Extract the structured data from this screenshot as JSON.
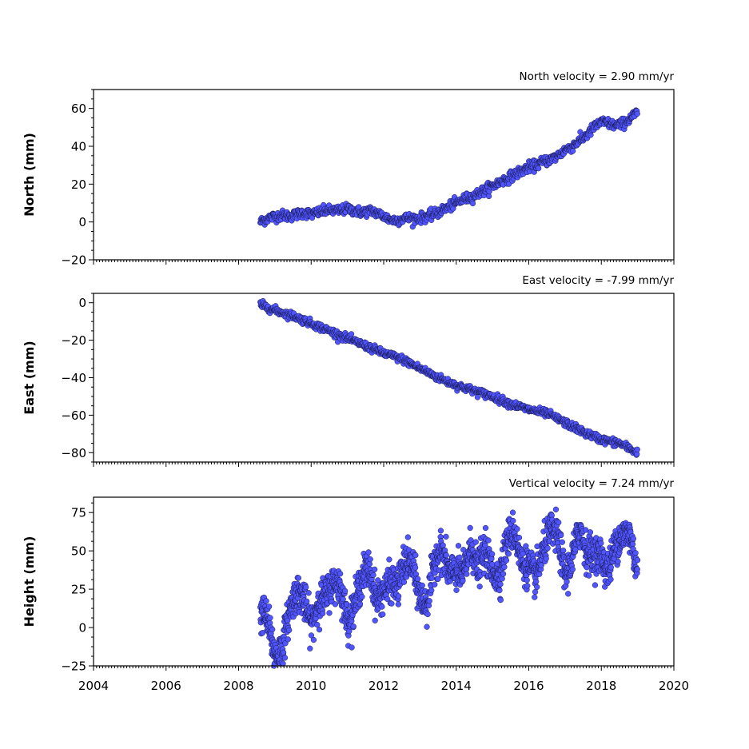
{
  "chart_data": [
    {
      "type": "scatter",
      "title": "North velocity = 2.90 mm/yr",
      "ylabel": "North (mm)",
      "xlim": [
        2004,
        2020
      ],
      "ylim": [
        -20,
        70
      ],
      "yticks": [
        -20,
        0,
        20,
        40,
        60
      ],
      "x_tick_labels_shown": false,
      "marker_color": "#5055ff",
      "series": [
        {
          "x": [
            2008.6,
            2008.8,
            2009.0,
            2009.2,
            2009.4,
            2009.6,
            2009.8,
            2010.0,
            2010.2,
            2010.4,
            2010.6,
            2010.8,
            2011.0,
            2011.2,
            2011.4,
            2011.6,
            2011.8,
            2012.0,
            2012.2,
            2012.4,
            2012.6,
            2012.8,
            2013.0,
            2013.2,
            2013.4,
            2013.6,
            2013.8,
            2014.0,
            2014.2,
            2014.4,
            2014.6,
            2014.8,
            2015.0,
            2015.2,
            2015.4,
            2015.6,
            2015.8,
            2016.0,
            2016.2,
            2016.4,
            2016.6,
            2016.8,
            2017.0,
            2017.2,
            2017.4,
            2017.6,
            2017.8,
            2018.0,
            2018.2,
            2018.4,
            2018.6,
            2018.8,
            2019.0
          ],
          "y": [
            0,
            2,
            3,
            3.5,
            3,
            4,
            5,
            4,
            5,
            6,
            6,
            6,
            7,
            6,
            5,
            6,
            5,
            3,
            1,
            1,
            2,
            2,
            2,
            3,
            4,
            6,
            8,
            10,
            12,
            13,
            15,
            17,
            19,
            21,
            23,
            25,
            27,
            29,
            30,
            32,
            33,
            35,
            38,
            40,
            43,
            46,
            50,
            53,
            52,
            51,
            52,
            55,
            58
          ]
        }
      ]
    },
    {
      "type": "scatter",
      "title": "East velocity = -7.99 mm/yr",
      "ylabel": "East (mm)",
      "xlim": [
        2004,
        2020
      ],
      "ylim": [
        -85,
        5
      ],
      "yticks": [
        -80,
        -60,
        -40,
        -20,
        0
      ],
      "x_tick_labels_shown": false,
      "marker_color": "#5055ff",
      "series": [
        {
          "x": [
            2008.6,
            2009.0,
            2009.5,
            2010.0,
            2010.5,
            2011.0,
            2011.5,
            2012.0,
            2012.5,
            2013.0,
            2013.5,
            2014.0,
            2014.5,
            2015.0,
            2015.5,
            2016.0,
            2016.5,
            2017.0,
            2017.5,
            2018.0,
            2018.5,
            2019.0
          ],
          "y": [
            -1,
            -4,
            -7,
            -11,
            -15,
            -19,
            -23,
            -27,
            -30,
            -35,
            -40,
            -44,
            -47,
            -50,
            -54,
            -57,
            -59,
            -64,
            -69,
            -73,
            -75,
            -80
          ]
        }
      ]
    },
    {
      "type": "scatter",
      "title": "Vertical velocity = 7.24 mm/yr",
      "ylabel": "Height (mm)",
      "xlim": [
        2004,
        2020
      ],
      "ylim": [
        -25,
        85
      ],
      "yticks": [
        -25,
        0,
        25,
        50,
        75
      ],
      "xticks": [
        2004,
        2006,
        2008,
        2010,
        2012,
        2014,
        2016,
        2018,
        2020
      ],
      "marker_color": "#5055ff",
      "series": [
        {
          "x": [
            2008.6,
            2008.8,
            2009.0,
            2009.2,
            2009.4,
            2009.6,
            2009.8,
            2010.0,
            2010.2,
            2010.4,
            2010.6,
            2010.8,
            2011.0,
            2011.2,
            2011.4,
            2011.6,
            2011.8,
            2012.0,
            2012.2,
            2012.4,
            2012.6,
            2012.8,
            2013.0,
            2013.2,
            2013.4,
            2013.6,
            2013.8,
            2014.0,
            2014.2,
            2014.4,
            2014.6,
            2014.8,
            2015.0,
            2015.2,
            2015.4,
            2015.6,
            2015.8,
            2016.0,
            2016.2,
            2016.4,
            2016.6,
            2016.8,
            2017.0,
            2017.2,
            2017.4,
            2017.6,
            2017.8,
            2018.0,
            2018.2,
            2018.4,
            2018.6,
            2018.8,
            2019.0
          ],
          "y": [
            2,
            5,
            -10,
            -8,
            5,
            15,
            18,
            10,
            22,
            15,
            20,
            28,
            12,
            20,
            28,
            30,
            18,
            32,
            35,
            22,
            35,
            40,
            28,
            20,
            38,
            42,
            35,
            45,
            40,
            48,
            30,
            50,
            45,
            38,
            52,
            55,
            42,
            48,
            38,
            45,
            55,
            60,
            42,
            50,
            60,
            40,
            48,
            55,
            42,
            50,
            52,
            60,
            45
          ]
        }
      ]
    }
  ]
}
